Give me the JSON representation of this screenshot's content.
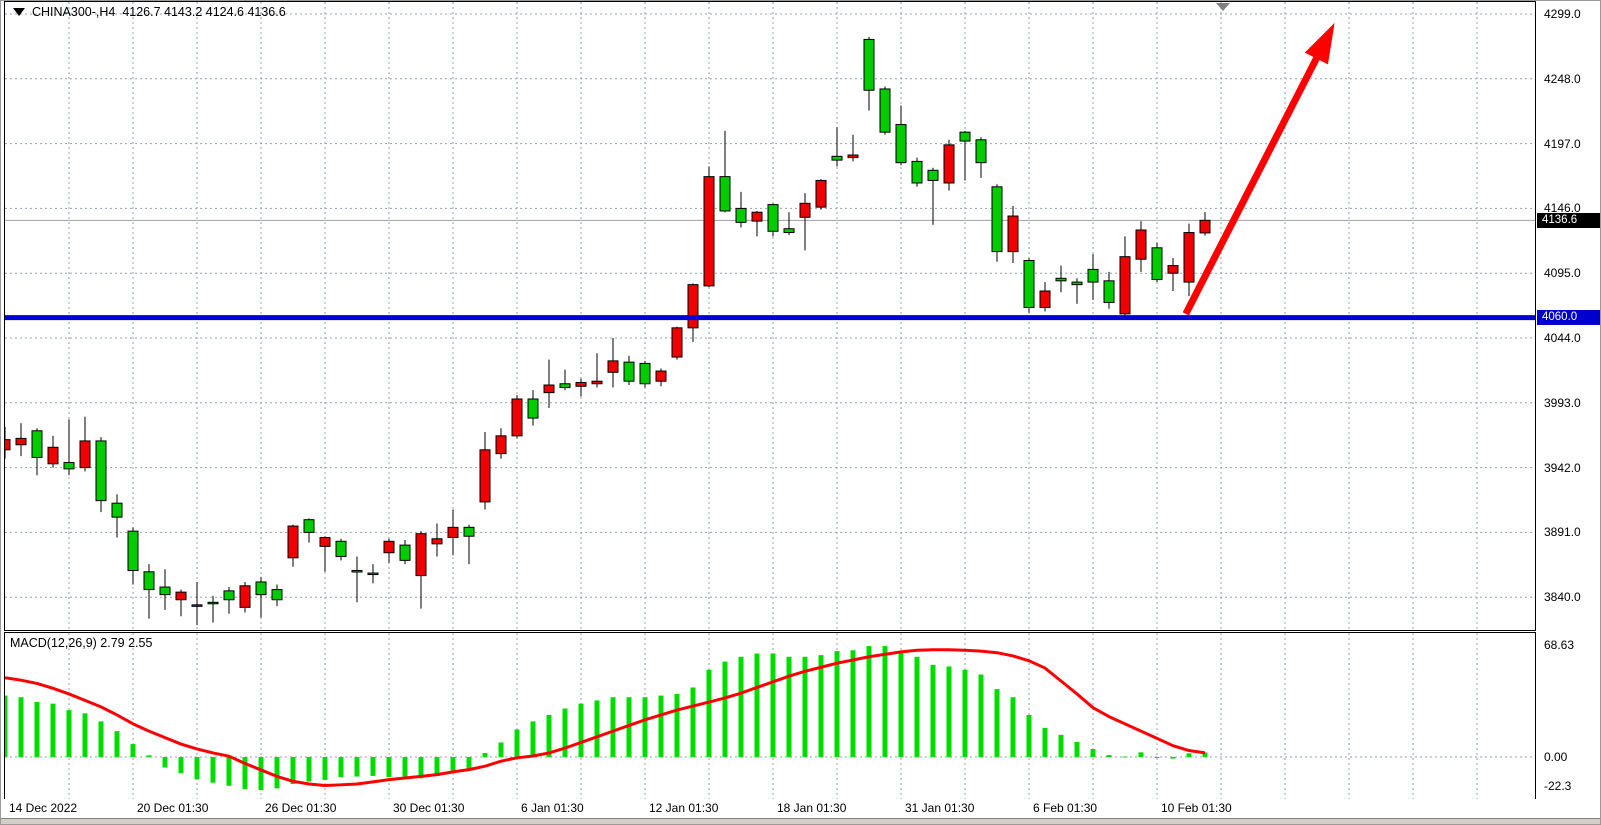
{
  "window": {
    "symbol": "CHINA300-,H4",
    "ohlc_readout": "4126.7 4143.2 4124.6 4136.6"
  },
  "indicator_label": "MACD(12,26,9) 2.79 2.55",
  "price_axis": {
    "ticks": [
      "4299.0",
      "4248.0",
      "4197.0",
      "4146.0",
      "4095.0",
      "4044.0",
      "3993.0",
      "3942.0",
      "3891.0",
      "3840.0"
    ],
    "current_price": "4136.6",
    "support_price": "4060.0"
  },
  "macd_axis": {
    "max": "68.63",
    "zero": "0.00",
    "min": "-22.3"
  },
  "time_axis": {
    "labels": [
      {
        "text": "14 Dec 2022",
        "x": 5
      },
      {
        "text": "20 Dec 01:30",
        "x": 133
      },
      {
        "text": "26 Dec 01:30",
        "x": 261
      },
      {
        "text": "30 Dec 01:30",
        "x": 389
      },
      {
        "text": "6 Jan 01:30",
        "x": 517
      },
      {
        "text": "12 Jan 01:30",
        "x": 645
      },
      {
        "text": "18 Jan 01:30",
        "x": 773
      },
      {
        "text": "31 Jan 01:30",
        "x": 901
      },
      {
        "text": "6 Feb 01:30",
        "x": 1029
      },
      {
        "text": "10 Feb 01:30",
        "x": 1157
      }
    ]
  },
  "colors": {
    "up": "#ee0000",
    "down": "#00cc00",
    "wick": "#000000",
    "macd_bar": "#00dd00",
    "signal_line": "#ff0000",
    "grid": "#94a2b4",
    "support_line": "#0000d8",
    "current_line": "#a0a0a0",
    "arrow": "#ff0000",
    "badge_current_bg": "#000000",
    "badge_support_bg": "#0000cc",
    "shift_marker": "#808080"
  },
  "chart_data": [
    {
      "type": "candlestick",
      "title": "CHINA300-,H4",
      "ylabel": "price",
      "ylim": [
        3813,
        4308
      ],
      "y_ticks": [
        4299,
        4248,
        4197,
        4146,
        4095,
        4044,
        3993,
        3942,
        3891,
        3840
      ],
      "x_tick_labels": [
        "14 Dec 2022",
        "20 Dec 01:30",
        "26 Dec 01:30",
        "30 Dec 01:30",
        "6 Jan 01:30",
        "12 Jan 01:30",
        "18 Jan 01:30",
        "31 Jan 01:30",
        "6 Feb 01:30",
        "10 Feb 01:30"
      ],
      "grid": true,
      "up_color_means": "bullish close>open drawn red",
      "candles_ohlc": [
        [
          3956,
          3974,
          3949,
          3964
        ],
        [
          3960,
          3977,
          3951,
          3965
        ],
        [
          3971,
          3973,
          3936,
          3950
        ],
        [
          3945,
          3967,
          3942,
          3958
        ],
        [
          3946,
          3980,
          3936,
          3941
        ],
        [
          3942,
          3982,
          3939,
          3963
        ],
        [
          3963,
          3966,
          3907,
          3916
        ],
        [
          3914,
          3921,
          3887,
          3903
        ],
        [
          3892,
          3895,
          3850,
          3861
        ],
        [
          3860,
          3866,
          3823,
          3846
        ],
        [
          3848,
          3862,
          3830,
          3842
        ],
        [
          3838,
          3846,
          3825,
          3844
        ],
        [
          3833,
          3852,
          3818,
          3834
        ],
        [
          3836,
          3841,
          3820,
          3835
        ],
        [
          3845,
          3848,
          3827,
          3838
        ],
        [
          3832,
          3852,
          3828,
          3849
        ],
        [
          3852,
          3856,
          3824,
          3842
        ],
        [
          3846,
          3850,
          3833,
          3838
        ],
        [
          3871,
          3897,
          3864,
          3896
        ],
        [
          3901,
          3902,
          3883,
          3891
        ],
        [
          3880,
          3888,
          3860,
          3887
        ],
        [
          3884,
          3886,
          3869,
          3872
        ],
        [
          3861,
          3872,
          3836,
          3860
        ],
        [
          3859,
          3866,
          3851,
          3858
        ],
        [
          3875,
          3886,
          3867,
          3884
        ],
        [
          3881,
          3885,
          3866,
          3869
        ],
        [
          3857,
          3892,
          3831,
          3890
        ],
        [
          3882,
          3898,
          3872,
          3886
        ],
        [
          3887,
          3909,
          3873,
          3895
        ],
        [
          3895,
          3897,
          3866,
          3888
        ],
        [
          3915,
          3970,
          3909,
          3956
        ],
        [
          3953,
          3973,
          3949,
          3967
        ],
        [
          3967,
          3999,
          3965,
          3996
        ],
        [
          3996,
          4003,
          3975,
          3981
        ],
        [
          4001,
          4027,
          3989,
          4007
        ],
        [
          4008,
          4019,
          4003,
          4005
        ],
        [
          4006,
          4012,
          3998,
          4009
        ],
        [
          4008,
          4032,
          4005,
          4010
        ],
        [
          4017,
          4044,
          4005,
          4026
        ],
        [
          4025,
          4030,
          4007,
          4010
        ],
        [
          4024,
          4026,
          4005,
          4008
        ],
        [
          4010,
          4020,
          4006,
          4018
        ],
        [
          4029,
          4053,
          4027,
          4052
        ],
        [
          4052,
          4087,
          4041,
          4086
        ],
        [
          4085,
          4179,
          4084,
          4171
        ],
        [
          4171,
          4207,
          4143,
          4144
        ],
        [
          4146,
          4159,
          4131,
          4135
        ],
        [
          4136,
          4144,
          4124,
          4143
        ],
        [
          4149,
          4150,
          4124,
          4128
        ],
        [
          4130,
          4143,
          4125,
          4127
        ],
        [
          4139,
          4158,
          4113,
          4150
        ],
        [
          4147,
          4169,
          4145,
          4168
        ],
        [
          4187,
          4210,
          4179,
          4184
        ],
        [
          4186,
          4204,
          4183,
          4188
        ],
        [
          4279,
          4281,
          4223,
          4239
        ],
        [
          4240,
          4242,
          4204,
          4206
        ],
        [
          4212,
          4227,
          4180,
          4182
        ],
        [
          4183,
          4186,
          4163,
          4166
        ],
        [
          4176,
          4178,
          4133,
          4168
        ],
        [
          4166,
          4200,
          4160,
          4196
        ],
        [
          4206,
          4207,
          4168,
          4199
        ],
        [
          4200,
          4202,
          4170,
          4182
        ],
        [
          4163,
          4165,
          4104,
          4112
        ],
        [
          4112,
          4148,
          4103,
          4140
        ],
        [
          4105,
          4107,
          4064,
          4068
        ],
        [
          4068,
          4088,
          4065,
          4081
        ],
        [
          4091,
          4101,
          4080,
          4089
        ],
        [
          4088,
          4091,
          4071,
          4086
        ],
        [
          4098,
          4110,
          4074,
          4088
        ],
        [
          4089,
          4096,
          4067,
          4072
        ],
        [
          4063,
          4124,
          4061,
          4108
        ],
        [
          4106,
          4136,
          4096,
          4129
        ],
        [
          4115,
          4119,
          4088,
          4090
        ],
        [
          4095,
          4107,
          4081,
          4101
        ],
        [
          4088,
          4134,
          4077,
          4127
        ],
        [
          4126.7,
          4143.2,
          4124.6,
          4136.6
        ]
      ],
      "annotations": [
        {
          "type": "horizontal-line",
          "price": 4060.0
        },
        {
          "type": "current-price-line",
          "price": 4136.6
        },
        {
          "type": "arrow-up",
          "from": {
            "index": 73.8,
            "price": 4063
          },
          "to": {
            "index": 83.1,
            "price": 4292
          }
        },
        {
          "type": "chart-shift-marker",
          "index": 76.1
        }
      ]
    },
    {
      "type": "macd",
      "title": "MACD(12,26,9)",
      "macd_value": 2.79,
      "signal_value": 2.55,
      "ylim": [
        -25.5,
        68.63
      ],
      "y_ticks": [
        68.63,
        0.0,
        -22.3
      ],
      "histogram": [
        38,
        37,
        34,
        33,
        29,
        27,
        22,
        16,
        8,
        1,
        -6.5,
        -10,
        -13.8,
        -15.9,
        -17.8,
        -19.8,
        -20.5,
        -19.4,
        -16.7,
        -15.2,
        -14.2,
        -12.5,
        -12.1,
        -11.7,
        -12.5,
        -12.1,
        -13.2,
        -11.7,
        -10,
        -8.4,
        2.5,
        9,
        17,
        22,
        26,
        30,
        33,
        35,
        37,
        37,
        37,
        38,
        39,
        43,
        54,
        59,
        62,
        64,
        64,
        62,
        62,
        63,
        65.5,
        66,
        68.6,
        68.6,
        65,
        62,
        57,
        56,
        54,
        51,
        42,
        37,
        26,
        18,
        13.7,
        9.3,
        4.9,
        1.2,
        0.3,
        2.9,
        -0.5,
        -1,
        2.3,
        2.79
      ],
      "signal_line": [
        49,
        47.5,
        45.5,
        42.5,
        39,
        35,
        31,
        26,
        20.5,
        16,
        12,
        8,
        5,
        2.5,
        0.5,
        -4,
        -8,
        -12,
        -15,
        -16.7,
        -17.6,
        -17.2,
        -16.7,
        -15.4,
        -14,
        -13,
        -12,
        -10.9,
        -9.2,
        -7.8,
        -5.7,
        -2.6,
        -0.5,
        0.6,
        2.5,
        5.5,
        9,
        12.5,
        16,
        19.5,
        23,
        26,
        29,
        31.5,
        34,
        36.5,
        39.5,
        43,
        46.5,
        50,
        53,
        55.5,
        58,
        60,
        62,
        63.5,
        65,
        66,
        66.3,
        66.3,
        66,
        65.5,
        64.5,
        62.5,
        59.5,
        55,
        47,
        39,
        30.5,
        25,
        20.5,
        16,
        11.5,
        7,
        4,
        2.55
      ]
    }
  ]
}
